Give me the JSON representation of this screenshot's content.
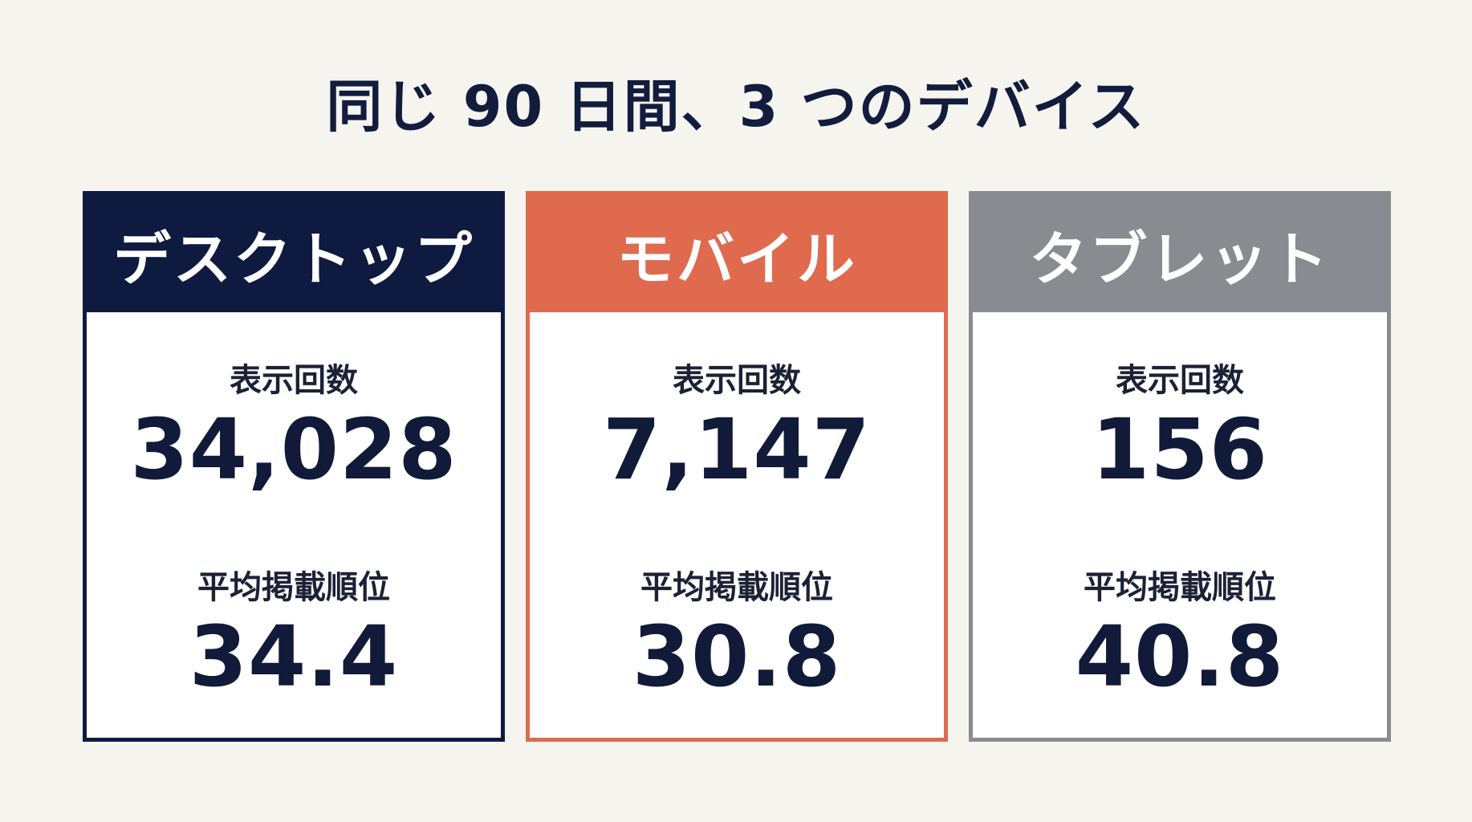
{
  "title": "同じ 90 日間、3 つのデバイス",
  "colors": {
    "background": "#f6f4ef",
    "desktop": "#0e1a40",
    "mobile": "#df6a4e",
    "tablet": "#888b90",
    "text": "#121a3a"
  },
  "cards": [
    {
      "name": "デスクトップ",
      "impressions_label": "表示回数",
      "impressions": "34,028",
      "position_label": "平均掲載順位",
      "position": "34.4"
    },
    {
      "name": "モバイル",
      "impressions_label": "表示回数",
      "impressions": "7,147",
      "position_label": "平均掲載順位",
      "position": "30.8"
    },
    {
      "name": "タブレット",
      "impressions_label": "表示回数",
      "impressions": "156",
      "position_label": "平均掲載順位",
      "position": "40.8"
    }
  ]
}
